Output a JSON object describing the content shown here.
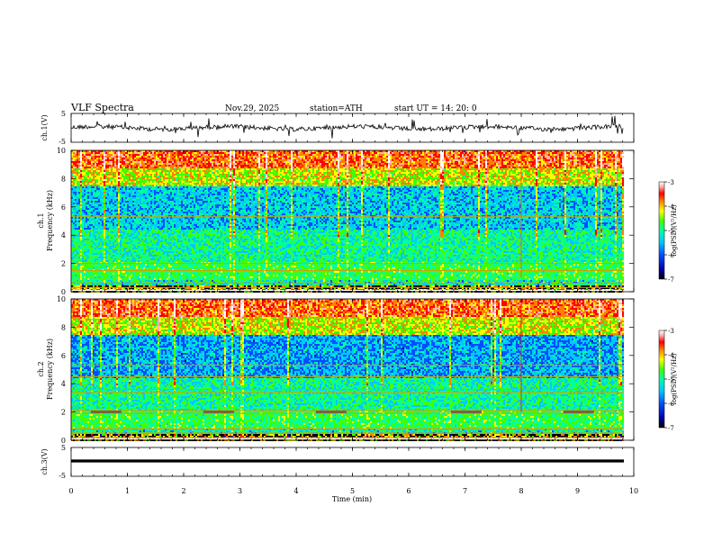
{
  "header": {
    "title": "VLF  Spectra",
    "date": "Nov.29, 2025",
    "station": "station=ATH",
    "start": "start  UT  =    14: 20: 0"
  },
  "chart_data": [
    {
      "type": "line",
      "id": "ch1-waveform",
      "ylabel": "ch.1(V)",
      "ylim": [
        -5,
        5
      ],
      "y_ticks": [
        "5",
        "-5"
      ],
      "xlim": [
        0,
        10
      ],
      "color": "#000000"
    },
    {
      "type": "heatmap",
      "id": "ch1-spectrogram",
      "ylabel_line1": "ch.1",
      "ylabel_line2": "Frequency  (kHz)",
      "ylim": [
        0,
        10
      ],
      "y_ticks": [
        "0",
        "2",
        "4",
        "6",
        "8",
        "10"
      ],
      "xlim": [
        0,
        9.8
      ],
      "colorbar": {
        "label": "log(PSD)(V²/Hz)",
        "range": [
          -7,
          -3
        ],
        "ticks": [
          "-3",
          "-4",
          "-5",
          "-6",
          "-7"
        ]
      }
    },
    {
      "type": "heatmap",
      "id": "ch2-spectrogram",
      "ylabel_line1": "ch.2",
      "ylabel_line2": "Frequency  (kHz)",
      "ylim": [
        0,
        10
      ],
      "y_ticks": [
        "0",
        "2",
        "4",
        "6",
        "8",
        "10"
      ],
      "xlim": [
        0,
        9.8
      ],
      "colorbar": {
        "label": "log(PSD)(V²/Hz)",
        "range": [
          -7,
          -3
        ],
        "ticks": [
          "-3",
          "-4",
          "-5",
          "-6",
          "-7"
        ]
      }
    },
    {
      "type": "line",
      "id": "ch3-waveform",
      "ylabel": "ch.3(V)",
      "ylim": [
        -5,
        5
      ],
      "y_ticks": [
        "5",
        "-5"
      ],
      "xlim": [
        0,
        10
      ],
      "color": "#000000"
    }
  ],
  "xaxis": {
    "label": "Time  (min)",
    "ticks": [
      "0",
      "1",
      "2",
      "3",
      "4",
      "5",
      "6",
      "7",
      "8",
      "9",
      "10"
    ],
    "range": [
      0,
      10
    ]
  },
  "colormap": [
    "#000000",
    "#0000b0",
    "#0050ff",
    "#00c8ff",
    "#00ffa0",
    "#40ff00",
    "#ffff00",
    "#ff8000",
    "#ff0000",
    "#ffb0b0",
    "#ffffff"
  ]
}
